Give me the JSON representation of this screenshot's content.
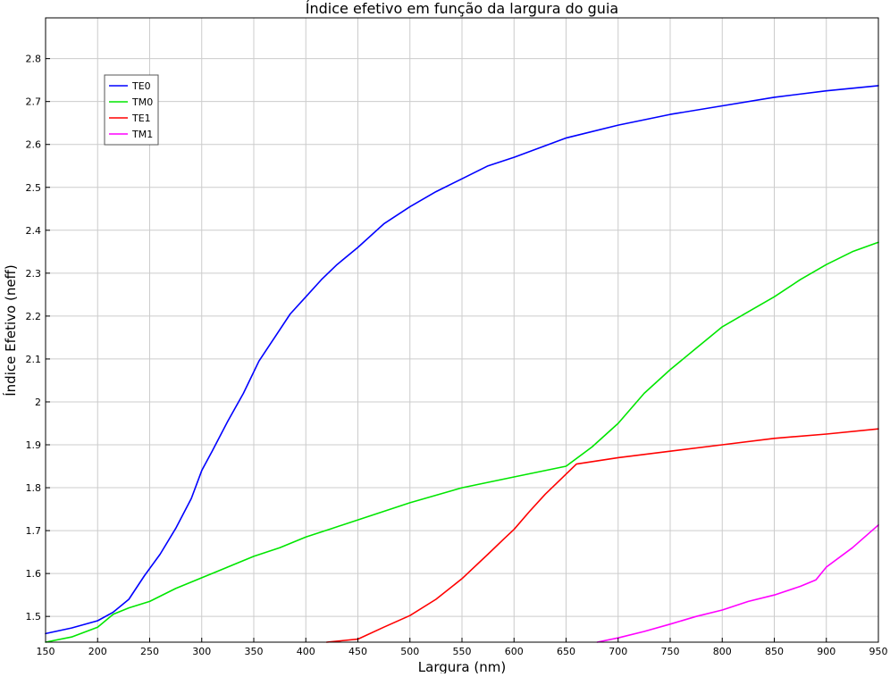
{
  "chart_data": {
    "type": "line",
    "title": "Índice efetivo em função da largura do guia",
    "xlabel": "Largura (nm)",
    "ylabel": "Índice Efetivo (neff)",
    "xlim": [
      150,
      950
    ],
    "ylim": [
      1.44,
      2.895
    ],
    "grid": true,
    "legend_position": "top-left",
    "xticks": [
      150,
      200,
      250,
      300,
      350,
      400,
      450,
      500,
      550,
      600,
      650,
      700,
      750,
      800,
      850,
      900,
      950
    ],
    "yticks": [
      1.5,
      1.6,
      1.7,
      1.8,
      1.9,
      2,
      2.1,
      2.2,
      2.3,
      2.4,
      2.5,
      2.6,
      2.7,
      2.8
    ],
    "ytick_labels": [
      "1.5",
      "1.6",
      "1.7",
      "1.8",
      "1.9",
      "2",
      "2.1",
      "2.2",
      "2.3",
      "2.4",
      "2.5",
      "2.6",
      "2.7",
      "2.8"
    ],
    "series": [
      {
        "name": "TE0",
        "color": "#0000ff",
        "x": [
          150,
          175,
          200,
          215,
          230,
          245,
          260,
          275,
          290,
          300,
          310,
          325,
          340,
          355,
          370,
          385,
          400,
          415,
          430,
          450,
          475,
          500,
          525,
          550,
          575,
          600,
          650,
          700,
          750,
          800,
          850,
          900,
          950
        ],
        "y": [
          1.46,
          1.473,
          1.49,
          1.51,
          1.54,
          1.595,
          1.645,
          1.705,
          1.775,
          1.84,
          1.885,
          1.955,
          2.02,
          2.095,
          2.15,
          2.205,
          2.245,
          2.285,
          2.32,
          2.36,
          2.415,
          2.455,
          2.49,
          2.52,
          2.55,
          2.57,
          2.615,
          2.645,
          2.67,
          2.69,
          2.71,
          2.725,
          2.737
        ]
      },
      {
        "name": "TM0",
        "color": "#00e600",
        "x": [
          150,
          175,
          200,
          215,
          230,
          250,
          275,
          300,
          325,
          350,
          375,
          400,
          425,
          450,
          500,
          550,
          600,
          650,
          675,
          700,
          725,
          750,
          775,
          800,
          825,
          850,
          875,
          900,
          925,
          950
        ],
        "y": [
          1.44,
          1.452,
          1.475,
          1.505,
          1.52,
          1.535,
          1.565,
          1.59,
          1.615,
          1.64,
          1.66,
          1.685,
          1.705,
          1.725,
          1.765,
          1.8,
          1.825,
          1.85,
          1.895,
          1.95,
          2.02,
          2.075,
          2.125,
          2.175,
          2.21,
          2.245,
          2.285,
          2.32,
          2.35,
          2.372
        ]
      },
      {
        "name": "TE1",
        "color": "#ff0000",
        "x": [
          420,
          450,
          475,
          500,
          525,
          550,
          575,
          590,
          600,
          615,
          630,
          645,
          660,
          700,
          750,
          800,
          850,
          900,
          950
        ],
        "y": [
          1.44,
          1.447,
          1.475,
          1.502,
          1.54,
          1.588,
          1.645,
          1.68,
          1.703,
          1.745,
          1.785,
          1.82,
          1.855,
          1.87,
          1.885,
          1.9,
          1.915,
          1.925,
          1.937
        ]
      },
      {
        "name": "TM1",
        "color": "#ff00ff",
        "x": [
          680,
          700,
          725,
          750,
          775,
          800,
          825,
          850,
          875,
          890,
          900,
          925,
          950
        ],
        "y": [
          1.44,
          1.45,
          1.465,
          1.482,
          1.5,
          1.515,
          1.535,
          1.55,
          1.57,
          1.585,
          1.615,
          1.66,
          1.713
        ]
      }
    ]
  }
}
